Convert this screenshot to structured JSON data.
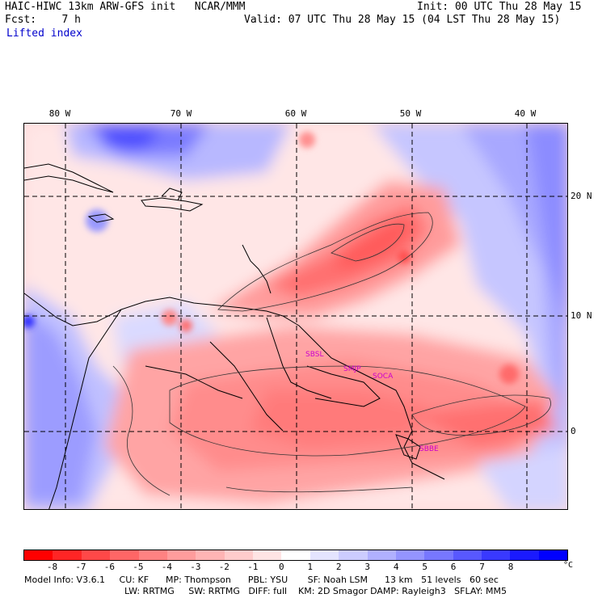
{
  "header": {
    "model_title": "HAIC-HIWC 13km ARW-GFS init   NCAR/MMM",
    "forecast": "Fcst:    7 h",
    "init": "Init: 00 UTC Thu 28 May 15",
    "valid": "Valid: 07 UTC Thu 28 May 15 (04 LST Thu 28 May 15)",
    "field": "Lifted index"
  },
  "longitude_labels": [
    "80 W",
    "70 W",
    "60 W",
    "50 W",
    "40 W"
  ],
  "latitude_labels": [
    "20 N",
    "10 N",
    "0"
  ],
  "stations": [
    "SBSL",
    "SMJP",
    "SOCA",
    "SBBE"
  ],
  "colorbar": {
    "labels": [
      "-8",
      "-7",
      "-6",
      "-5",
      "-4",
      "-3",
      "-2",
      "-1",
      "0",
      "1",
      "2",
      "3",
      "4",
      "5",
      "6",
      "7",
      "8"
    ],
    "unit": "°C",
    "colors": [
      "#ff0000",
      "#ff2525",
      "#ff4848",
      "#ff6666",
      "#ff8282",
      "#ff9c9c",
      "#ffb4b4",
      "#ffcccc",
      "#ffe4e4",
      "#ffffff",
      "#e4e4ff",
      "#ccccff",
      "#b0b0ff",
      "#9494ff",
      "#7777ff",
      "#5858ff",
      "#3939ff",
      "#1a1aff",
      "#0000ff"
    ]
  },
  "model_info": {
    "line1": "Model Info: V3.6.1     CU: KF      MP: Thompson      PBL: YSU       SF: Noah LSM      13 km   51 levels   60 sec",
    "line2": "LW: RRTMG     SW: RRTMG   DIFF: full    KM: 2D Smagor DAMP: Rayleigh3   SFLAY: MM5"
  }
}
